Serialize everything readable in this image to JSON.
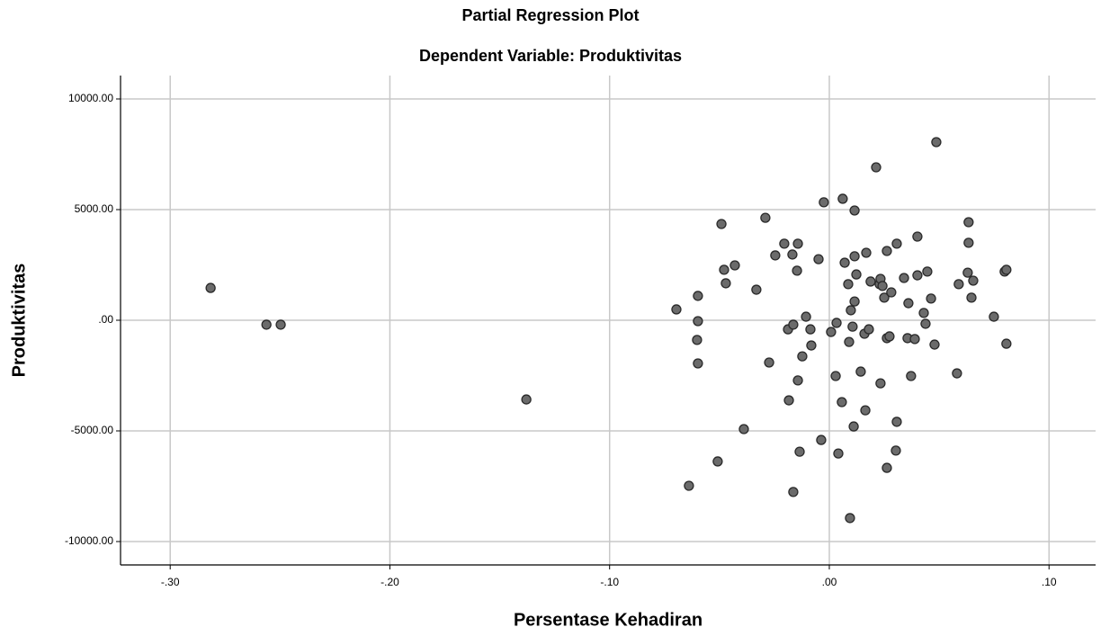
{
  "chart_data": {
    "type": "scatter",
    "title": "Partial Regression Plot",
    "subtitle": "Dependent Variable: Produktivitas",
    "x_label": "Persentase Kehadiran",
    "y_label": "Produktivitas",
    "color": "#6b6b6b",
    "grid": true,
    "xlim": [
      -0.3226,
      0.1212
    ],
    "ylim": [
      -11057,
      11057
    ],
    "xticks": [
      {
        "value": -0.3,
        "label": "-.30"
      },
      {
        "value": -0.2,
        "label": "-.20"
      },
      {
        "value": -0.1,
        "label": "-.10"
      },
      {
        "value": 0,
        "label": ".00"
      },
      {
        "value": 0.1,
        "label": ".10"
      }
    ],
    "yticks": [
      {
        "value": -10000,
        "label": "-10000.00"
      },
      {
        "value": -5000,
        "label": "-5000.00"
      },
      {
        "value": 0,
        "label": ".00"
      },
      {
        "value": 5000,
        "label": "5000.00"
      },
      {
        "value": 10000,
        "label": "10000.00"
      }
    ],
    "x": [
      -0.2816,
      -0.2562,
      -0.2497,
      -0.1379,
      -0.0696,
      -0.0639,
      -0.0598,
      -0.0598,
      -0.0602,
      -0.0598,
      -0.0491,
      -0.0479,
      -0.0471,
      -0.0508,
      -0.043,
      -0.0389,
      -0.0332,
      -0.0291,
      -0.0274,
      -0.0246,
      -0.0205,
      -0.0188,
      -0.0184,
      -0.0164,
      -0.0168,
      -0.0143,
      -0.0147,
      -0.0164,
      -0.0143,
      -0.0135,
      -0.0123,
      -0.0106,
      -0.0086,
      -0.0082,
      -0.0049,
      -0.0037,
      -0.0025,
      0.0008,
      0.0033,
      0.0029,
      0.0041,
      0.0057,
      0.0061,
      0.007,
      0.0086,
      0.009,
      0.0094,
      0.0098,
      0.0106,
      0.0111,
      0.0115,
      0.0115,
      0.0115,
      0.0123,
      0.0143,
      0.016,
      0.0164,
      0.0168,
      0.018,
      0.0188,
      0.0213,
      0.0229,
      0.0233,
      0.0233,
      0.0242,
      0.025,
      0.0262,
      0.0262,
      0.0262,
      0.0274,
      0.0282,
      0.0307,
      0.0307,
      0.0303,
      0.034,
      0.0356,
      0.036,
      0.0372,
      0.0389,
      0.0401,
      0.0401,
      0.043,
      0.0438,
      0.0446,
      0.0463,
      0.0479,
      0.0487,
      0.0581,
      0.0589,
      0.063,
      0.0634,
      0.0634,
      0.0647,
      0.0655,
      0.0749,
      0.0798,
      0.0806,
      0.0806
    ],
    "values": [
      1460,
      -200,
      -200,
      -3580,
      490,
      -7480,
      1100,
      -40,
      -890,
      -1950,
      4350,
      2280,
      1670,
      -6380,
      2480,
      -4920,
      1380,
      4630,
      -1910,
      2930,
      3460,
      -410,
      -3620,
      -200,
      2970,
      3460,
      2240,
      -7760,
      -2720,
      -5940,
      -1630,
      160,
      -410,
      -1140,
      2760,
      -5410,
      5330,
      -530,
      -120,
      -2520,
      -6020,
      -3700,
      5490,
      2600,
      1630,
      -980,
      -8940,
      450,
      -290,
      -4800,
      850,
      4960,
      2890,
      2070,
      -2320,
      -610,
      -4070,
      3050,
      -410,
      1750,
      6910,
      1630,
      1870,
      -2850,
      1550,
      1020,
      3130,
      -6670,
      -810,
      -730,
      1260,
      3460,
      -4590,
      -5890,
      1910,
      -810,
      770,
      -2520,
      -850,
      2030,
      3780,
      330,
      -160,
      2200,
      980,
      -1100,
      8050,
      -2400,
      1630,
      2150,
      4430,
      3500,
      1020,
      1790,
      160,
      2200,
      2280,
      -1060
    ]
  }
}
